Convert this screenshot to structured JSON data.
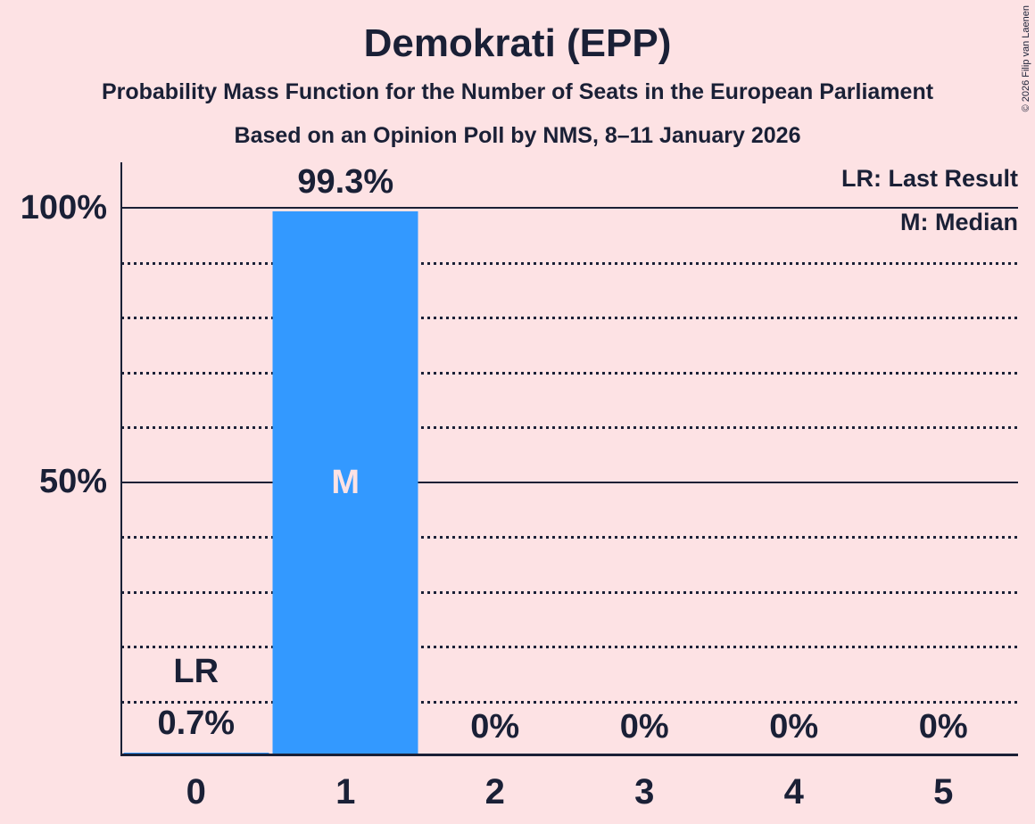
{
  "header": {
    "title": "Demokrati (EPP)",
    "subtitle1": "Probability Mass Function for the Number of Seats in the European Parliament",
    "subtitle2": "Based on an Opinion Poll by NMS, 8–11 January 2026"
  },
  "copyright": "© 2026 Filip van Laenen",
  "legend": {
    "last_result": "LR: Last Result",
    "median": "M: Median"
  },
  "y_axis": {
    "labels": [
      "100%",
      "50%"
    ]
  },
  "colors": {
    "background": "#fde2e4",
    "bar": "#3399ff",
    "ink": "#1a2036",
    "median_label": "#fde2e4"
  },
  "chart_data": {
    "type": "bar",
    "title": "Demokrati (EPP)",
    "xlabel": "",
    "ylabel": "",
    "categories": [
      "0",
      "1",
      "2",
      "3",
      "4",
      "5"
    ],
    "values": [
      0.7,
      99.3,
      0,
      0,
      0,
      0
    ],
    "value_labels": [
      "0.7%",
      "99.3%",
      "0%",
      "0%",
      "0%",
      "0%"
    ],
    "ylim": [
      0,
      100
    ],
    "gridlines_solid_pct": [
      100,
      50
    ],
    "gridlines_dotted_pct": [
      90,
      80,
      70,
      60,
      40,
      30,
      20,
      10
    ],
    "annotations": {
      "last_result_label": "LR",
      "last_result_index": 0,
      "median_label": "M",
      "median_index": 1
    },
    "legend_position": "top-right",
    "grid": true
  }
}
